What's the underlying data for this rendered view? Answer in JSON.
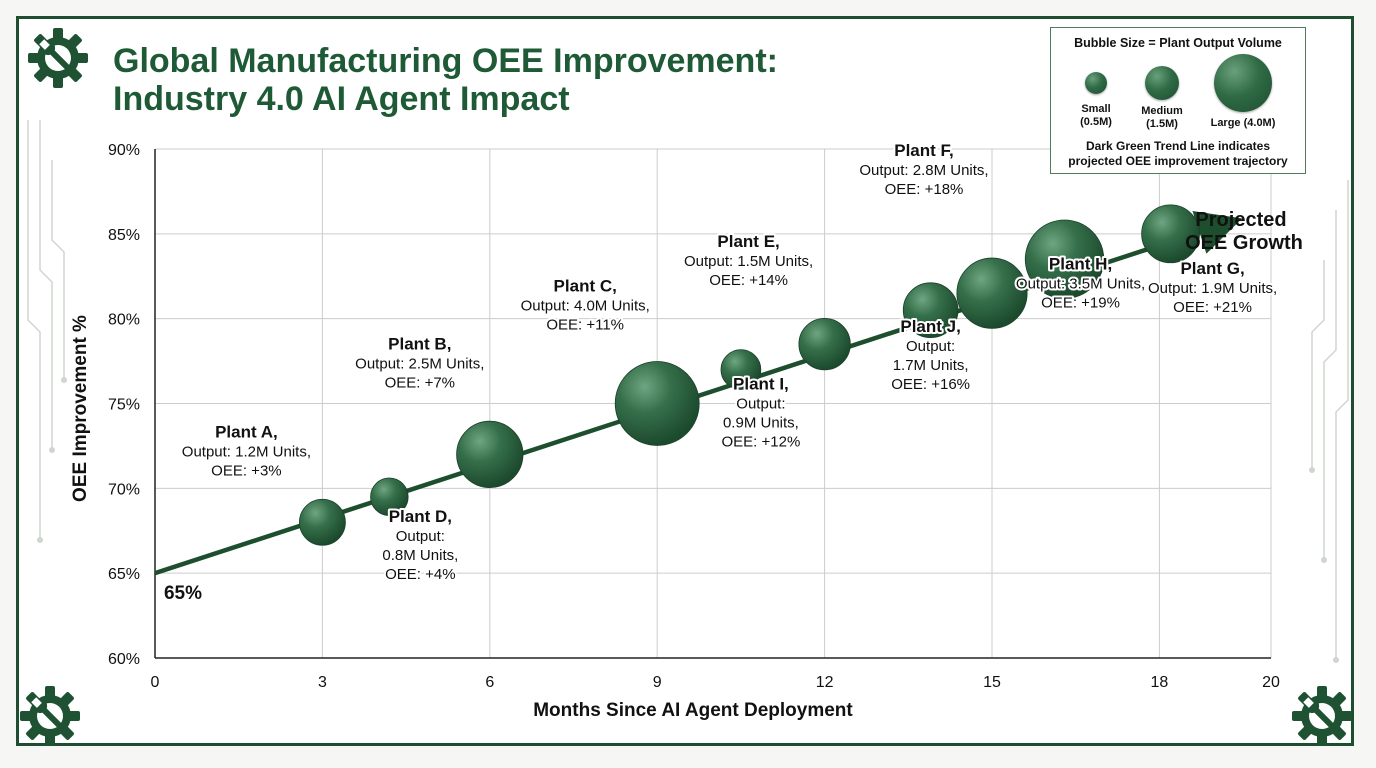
{
  "title": {
    "line1": "Global Manufacturing OEE Improvement:",
    "line2": "Industry 4.0 AI Agent Impact"
  },
  "legend": {
    "title": "Bubble Size = Plant Output Volume",
    "items": [
      {
        "label1": "Small",
        "label2": "(0.5M)",
        "output": 0.5
      },
      {
        "label1": "Medium",
        "label2": "(1.5M)",
        "output": 1.5
      },
      {
        "label1": "Large (4.0M)",
        "label2": "",
        "output": 4.0
      }
    ],
    "note_line1": "Dark Green Trend Line indicates",
    "note_line2": "projected OEE improvement trajectory"
  },
  "colors": {
    "bubble": "#2f6b45",
    "trend": "#1d4f2e",
    "title": "#1f5a36",
    "grid": "#cccccc"
  },
  "icons": [
    "gear-wrench-icon"
  ],
  "chart_data": {
    "type": "scatter",
    "title": "Global Manufacturing OEE Improvement: Industry 4.0 AI Agent Impact",
    "xlabel": "Months Since AI Agent Deployment",
    "ylabel": "OEE Improvement %",
    "xlim": [
      0,
      20
    ],
    "ylim": [
      60,
      90
    ],
    "xticks": [
      0,
      3,
      6,
      9,
      12,
      15,
      18,
      20
    ],
    "yticks": [
      60,
      65,
      70,
      75,
      80,
      85,
      90
    ],
    "ytick_labels": [
      "60%",
      "65%",
      "70%",
      "75%",
      "80%",
      "85%",
      "90%"
    ],
    "grid": true,
    "legend_position": "top-right",
    "points": [
      {
        "name": "Plant A,",
        "x": 3.0,
        "y": 68.0,
        "output": 1.2,
        "lines": [
          "Output: 1.2M Units,",
          "OEE: +3%"
        ]
      },
      {
        "name": "Plant D,",
        "x": 4.2,
        "y": 69.5,
        "output": 0.8,
        "lines": [
          "Output:",
          "0.8M Units,",
          "OEE: +4%"
        ]
      },
      {
        "name": "Plant B,",
        "x": 6.0,
        "y": 72.0,
        "output": 2.5,
        "lines": [
          "Output: 2.5M Units,",
          "OEE: +7%"
        ]
      },
      {
        "name": "Plant C,",
        "x": 9.0,
        "y": 75.0,
        "output": 4.0,
        "lines": [
          "Output: 4.0M Units,",
          "OEE: +11%"
        ]
      },
      {
        "name": "Plant I,",
        "x": 10.5,
        "y": 77.0,
        "output": 0.9,
        "lines": [
          "Output:",
          "0.9M Units,",
          "OEE: +12%"
        ]
      },
      {
        "name": "Plant E,",
        "x": 12.0,
        "y": 78.5,
        "output": 1.5,
        "lines": [
          "Output: 1.5M Units,",
          "OEE: +14%"
        ]
      },
      {
        "name": "Plant J,",
        "x": 13.9,
        "y": 80.5,
        "output": 1.7,
        "lines": [
          "Output:",
          "1.7M Units,",
          "OEE: +16%"
        ]
      },
      {
        "name": "Plant F,",
        "x": 15.0,
        "y": 81.5,
        "output": 2.8,
        "lines": [
          "Output: 2.8M Units,",
          "OEE: +18%"
        ]
      },
      {
        "name": "Plant H,",
        "x": 16.3,
        "y": 83.5,
        "output": 3.5,
        "lines": [
          "Output: 3.5M Units,",
          "OEE: +19%"
        ]
      },
      {
        "name": "Plant G,",
        "x": 18.2,
        "y": 85.0,
        "output": 1.9,
        "lines": [
          "Output: 1.9M Units,",
          "OEE: +21%"
        ]
      }
    ],
    "trend": {
      "x0": 0,
      "y0": 65,
      "x1": 19.1,
      "y1": 85.5
    },
    "annotations": {
      "start_label": "65%",
      "end_label_line1": "Projected",
      "end_label_line2": "OEE Growth"
    }
  }
}
